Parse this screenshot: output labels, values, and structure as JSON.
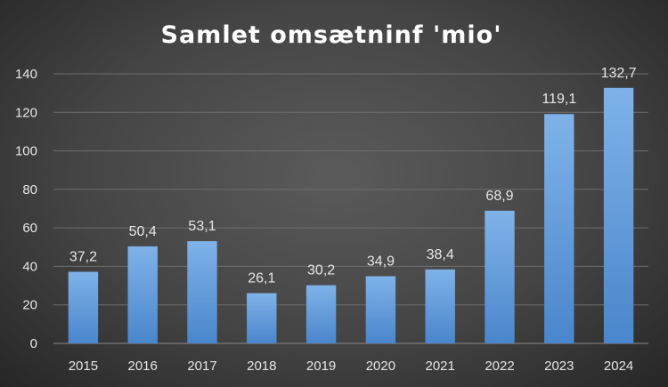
{
  "chart_data": {
    "type": "bar",
    "title": "Samlet omsætninf 'mio'",
    "categories": [
      "2015",
      "2016",
      "2017",
      "2018",
      "2019",
      "2020",
      "2021",
      "2022",
      "2023",
      "2024"
    ],
    "values": [
      37.2,
      50.4,
      53.1,
      26.1,
      30.2,
      34.9,
      38.4,
      68.9,
      119.1,
      132.7
    ],
    "data_labels": [
      "37,2",
      "50,4",
      "53,1",
      "26,1",
      "30,2",
      "34,9",
      "38,4",
      "68,9",
      "119,1",
      "132,7"
    ],
    "y_ticks": [
      "0",
      "20",
      "40",
      "60",
      "80",
      "100",
      "120",
      "140"
    ],
    "ylim": [
      0,
      140
    ],
    "grid": true,
    "legend": "none",
    "colors": {
      "bar_top": "#7fb2e8",
      "bar_bottom": "#4a86cc",
      "background": "#474747"
    }
  }
}
